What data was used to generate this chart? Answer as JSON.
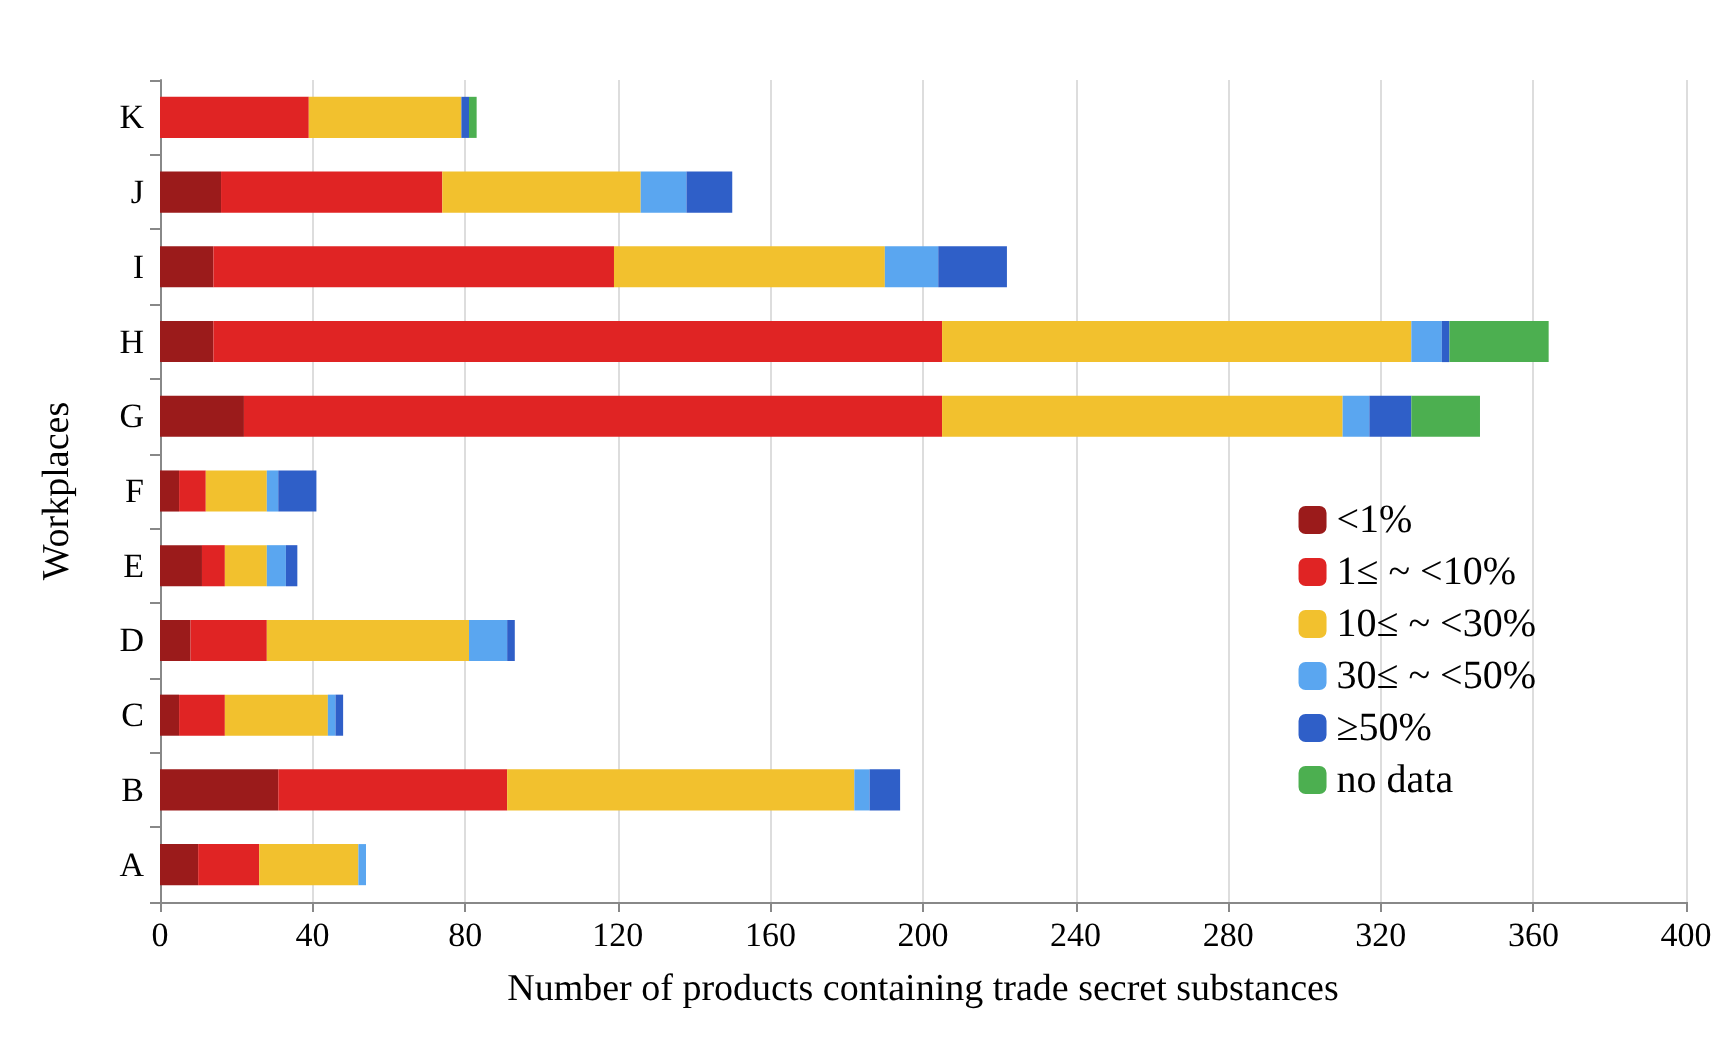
{
  "chart_data": {
    "type": "bar",
    "orientation": "horizontal",
    "stacked": true,
    "xlabel": "Number of products containing trade secret substances",
    "ylabel": "Workplaces",
    "categories": [
      "K",
      "J",
      "I",
      "H",
      "G",
      "F",
      "E",
      "D",
      "C",
      "B",
      "A"
    ],
    "series": [
      {
        "name": "<1%",
        "color": "#9b1b1b",
        "values": [
          0,
          16,
          14,
          14,
          22,
          5,
          11,
          8,
          5,
          31,
          10
        ]
      },
      {
        "name": "1≤ ~ <10%",
        "color": "#e02424",
        "values": [
          39,
          58,
          105,
          191,
          183,
          7,
          6,
          20,
          12,
          60,
          16
        ]
      },
      {
        "name": "10≤ ~ <30%",
        "color": "#f2c12e",
        "values": [
          40,
          52,
          71,
          123,
          105,
          16,
          11,
          53,
          27,
          91,
          26
        ]
      },
      {
        "name": "30≤ ~ <50%",
        "color": "#5aa6f0",
        "values": [
          0,
          12,
          14,
          8,
          7,
          3,
          5,
          10,
          2,
          4,
          2
        ]
      },
      {
        "name": "≥50%",
        "color": "#2f5fc8",
        "values": [
          2,
          12,
          18,
          2,
          11,
          10,
          3,
          2,
          2,
          8,
          0
        ]
      },
      {
        "name": "no data",
        "color": "#4caf50",
        "values": [
          2,
          0,
          0,
          26,
          18,
          0,
          0,
          0,
          0,
          0,
          0
        ]
      }
    ],
    "xlim": [
      0,
      400
    ],
    "xticks": [
      0,
      40,
      80,
      120,
      160,
      200,
      240,
      280,
      320,
      360,
      400
    ],
    "grid": "x",
    "legend": "right"
  }
}
